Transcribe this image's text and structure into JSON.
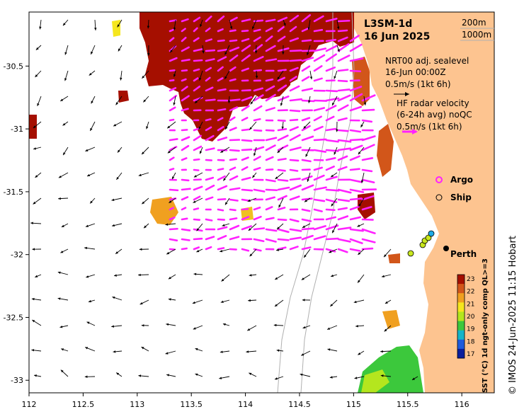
{
  "title": {
    "product": "L3SM-1d",
    "date": "16 Jun 2025"
  },
  "isobath_legend": [
    "200m",
    "1000m"
  ],
  "sealevel_legend": {
    "line1": "NRT00 adj. sealevel",
    "line2": "16-Jun 00:00Z",
    "scale": "0.5m/s (1kt 6h)"
  },
  "radar_legend": {
    "line1": "HF radar velocity",
    "line2": "(6-24h avg) noQC",
    "scale": "0.5m/s (1kt 6h)"
  },
  "markers": {
    "argo_label": "Argo",
    "ship_label": "Ship",
    "city_label": "Perth"
  },
  "axes": {
    "lon_ticks": [
      "112",
      "112.5",
      "113",
      "113.5",
      "114",
      "114.5",
      "115",
      "115.5",
      "116"
    ],
    "lat_ticks": [
      "-30.5",
      "-31",
      "-31.5",
      "-32",
      "-32.5",
      "-33"
    ],
    "lon_range": [
      112,
      116.3
    ],
    "lat_range": [
      -30.07,
      -33.1
    ]
  },
  "colorbar": {
    "ticks": [
      "23",
      "22",
      "21",
      "20",
      "19",
      "18",
      "17"
    ],
    "label": "SST (°C) 1d ngt-only comp QL>=3",
    "colors": [
      "#a50f00",
      "#d2561a",
      "#f0a020",
      "#f5e61e",
      "#b4e61e",
      "#3cc83c",
      "#14b4c8",
      "#1e5adc",
      "#0a1e9c"
    ]
  },
  "credit": "© IMOS 24-Jun-2025 11:15 Hobart",
  "colors": {
    "land": "#fdc490",
    "ssthot": "#a50f00",
    "radar": "#ff22ff"
  }
}
